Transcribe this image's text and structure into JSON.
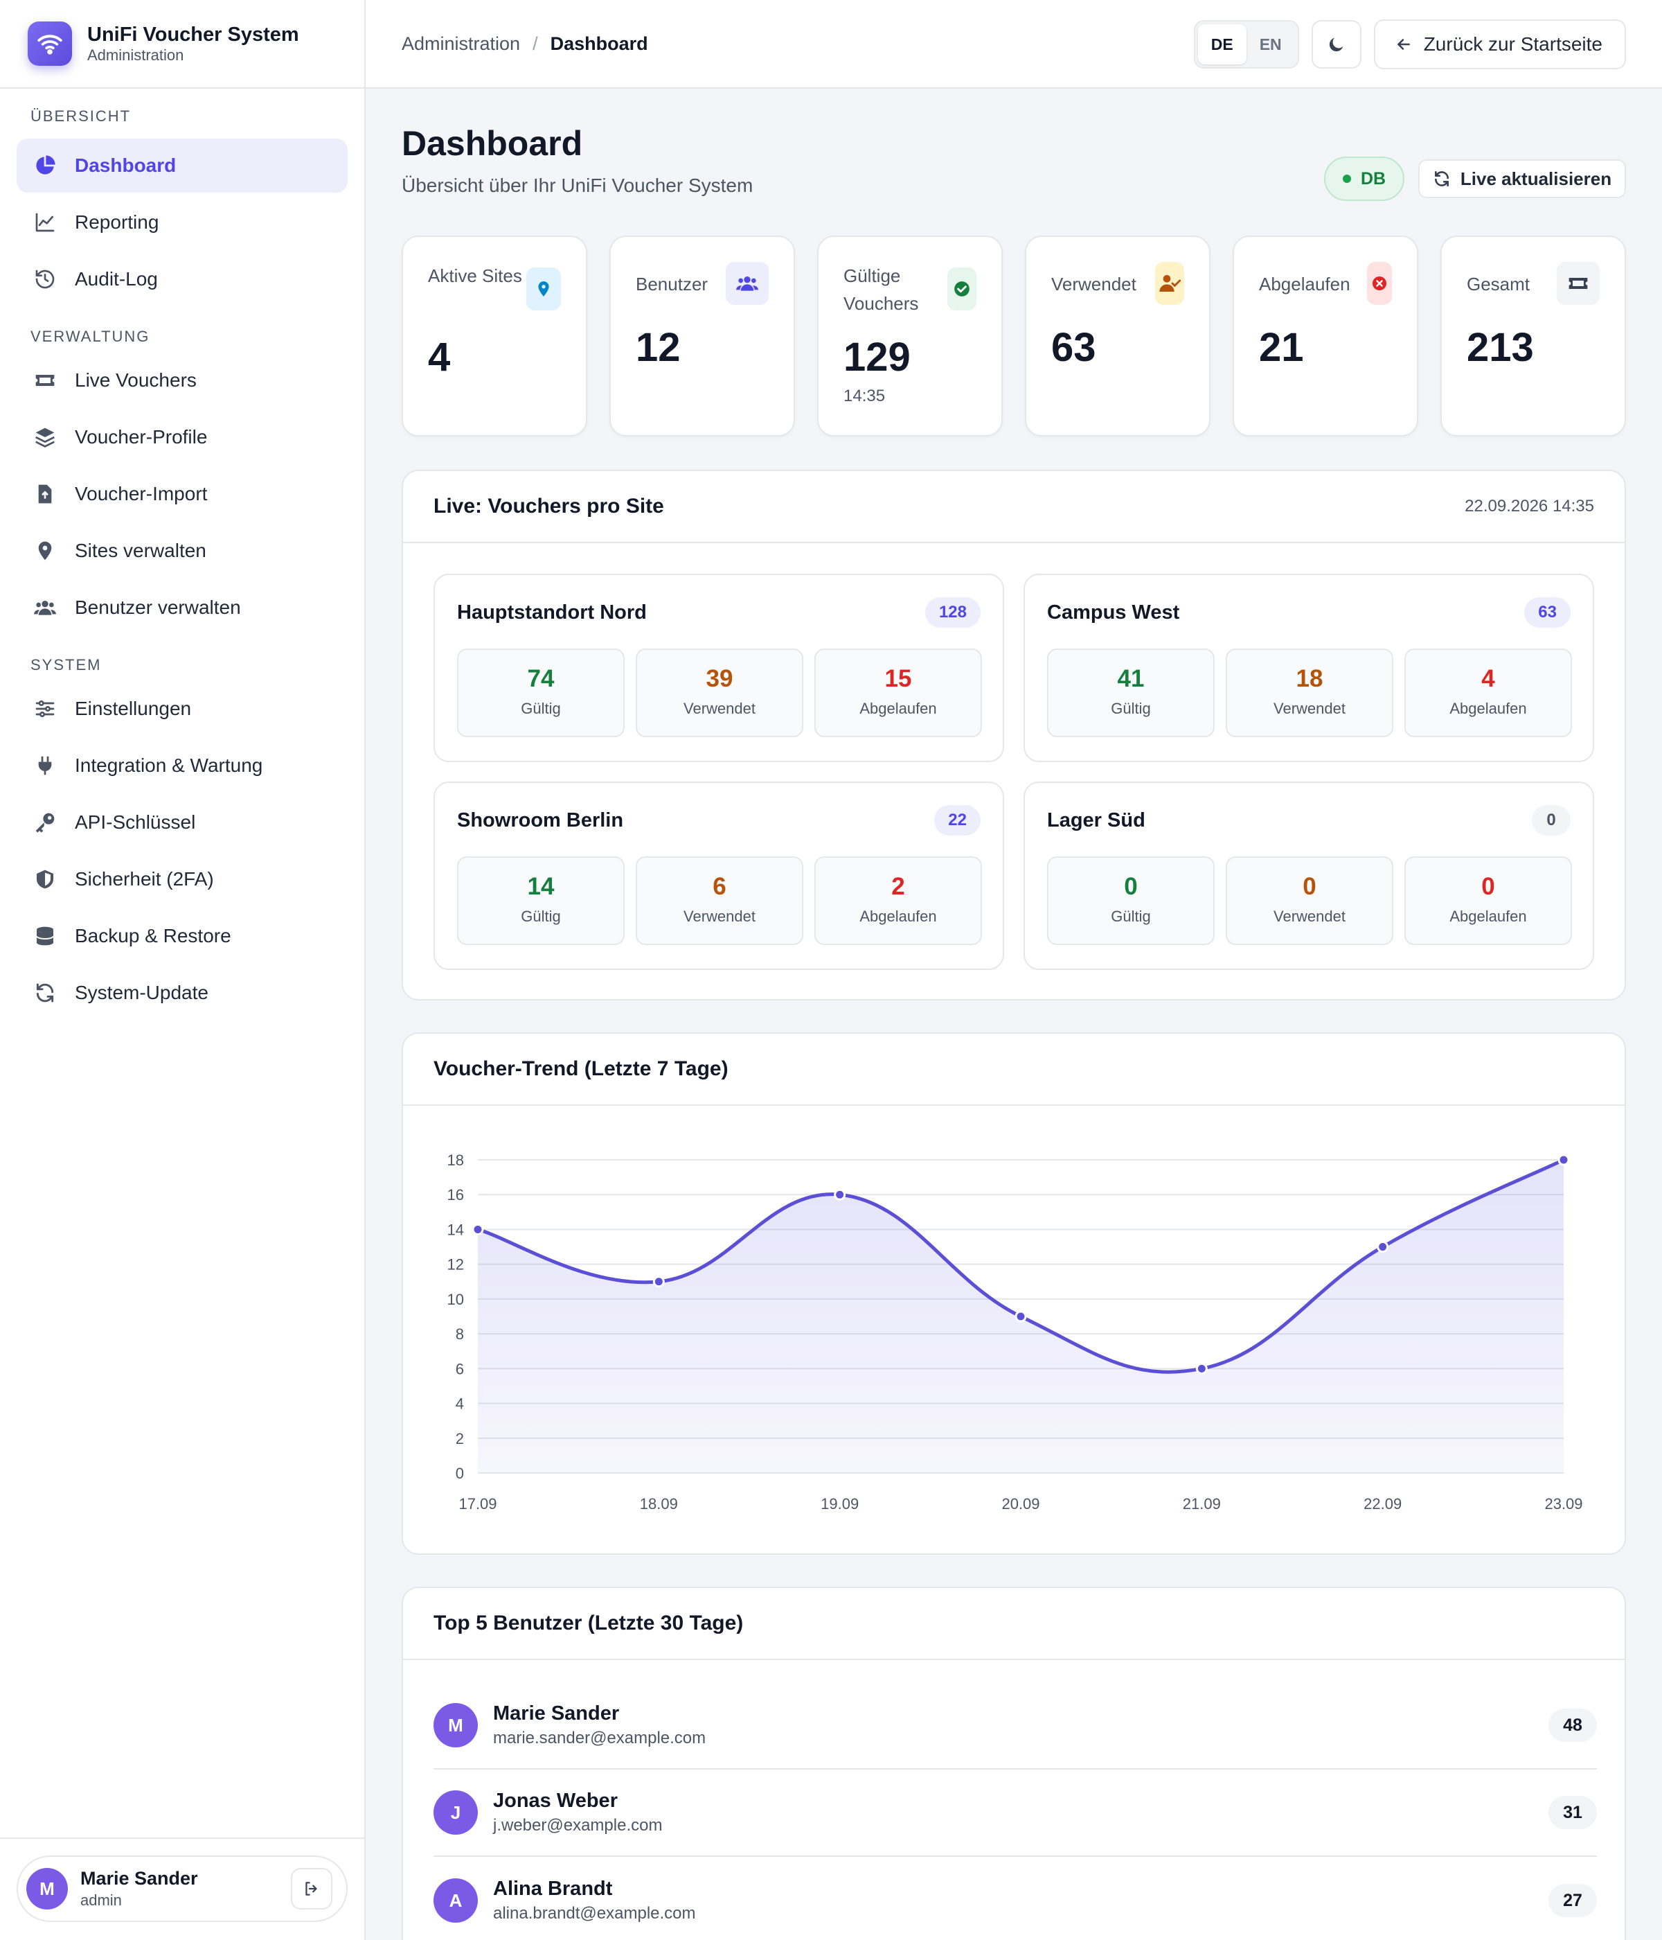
{
  "app": {
    "title": "UniFi Voucher System",
    "subtitle": "Administration"
  },
  "sidebar": {
    "sections": [
      {
        "label": "ÜBERSICHT",
        "items": [
          {
            "label": "Dashboard",
            "icon": "pie-chart-icon",
            "active": true
          },
          {
            "label": "Reporting",
            "icon": "line-chart-icon"
          },
          {
            "label": "Audit-Log",
            "icon": "history-icon"
          }
        ]
      },
      {
        "label": "VERWALTUNG",
        "items": [
          {
            "label": "Live Vouchers",
            "icon": "ticket-icon"
          },
          {
            "label": "Voucher-Profile",
            "icon": "layers-icon"
          },
          {
            "label": "Voucher-Import",
            "icon": "file-import-icon"
          },
          {
            "label": "Sites verwalten",
            "icon": "map-pin-icon"
          },
          {
            "label": "Benutzer verwalten",
            "icon": "users-icon"
          }
        ]
      },
      {
        "label": "SYSTEM",
        "items": [
          {
            "label": "Einstellungen",
            "icon": "sliders-icon"
          },
          {
            "label": "Integration & Wartung",
            "icon": "plug-icon"
          },
          {
            "label": "API-Schlüssel",
            "icon": "key-icon"
          },
          {
            "label": "Sicherheit (2FA)",
            "icon": "shield-icon"
          },
          {
            "label": "Backup & Restore",
            "icon": "database-icon"
          },
          {
            "label": "System-Update",
            "icon": "refresh-icon"
          }
        ]
      }
    ],
    "user": {
      "initial": "M",
      "name": "Marie Sander",
      "role": "admin"
    }
  },
  "topbar": {
    "breadcrumb": [
      "Administration",
      "Dashboard"
    ],
    "languages": [
      "DE",
      "EN"
    ],
    "active_language": "DE",
    "back_label": "Zurück zur Startseite"
  },
  "page": {
    "title": "Dashboard",
    "subtitle": "Übersicht über Ihr UniFi Voucher System",
    "db_badge": "DB",
    "refresh_label": "Live aktualisieren"
  },
  "stats": [
    {
      "label": "Aktive Sites",
      "value": "4",
      "icon": "map-pin-icon",
      "color": "#0284c7",
      "bg": "#e0f2fe"
    },
    {
      "label": "Benutzer",
      "value": "12",
      "icon": "users-icon",
      "color": "#4f46e5",
      "bg": "#eeedfc"
    },
    {
      "label": "Gültige Vouchers",
      "value": "129",
      "time": "14:35",
      "icon": "check-circle-icon",
      "color": "#15803d",
      "bg": "#e6f6ec"
    },
    {
      "label": "Verwendet",
      "value": "63",
      "icon": "user-check-icon",
      "color": "#b45309",
      "bg": "#fef3c7"
    },
    {
      "label": "Abgelaufen",
      "value": "21",
      "icon": "x-circle-icon",
      "color": "#dc2626",
      "bg": "#fee2e2"
    },
    {
      "label": "Gesamt",
      "value": "213",
      "icon": "ticket-icon",
      "color": "#374151",
      "bg": "#f3f4f6"
    }
  ],
  "live": {
    "title": "Live: Vouchers pro Site",
    "timestamp": "22.09.2026 14:35",
    "labels": {
      "valid": "Gültig",
      "used": "Verwendet",
      "expired": "Abgelaufen"
    },
    "sites": [
      {
        "name": "Hauptstandort Nord",
        "total": "128",
        "valid": "74",
        "used": "39",
        "expired": "15"
      },
      {
        "name": "Campus West",
        "total": "63",
        "valid": "41",
        "used": "18",
        "expired": "4"
      },
      {
        "name": "Showroom Berlin",
        "total": "22",
        "valid": "14",
        "used": "6",
        "expired": "2"
      },
      {
        "name": "Lager Süd",
        "total": "0",
        "valid": "0",
        "used": "0",
        "expired": "0"
      }
    ]
  },
  "trend": {
    "title": "Voucher-Trend (Letzte 7 Tage)"
  },
  "chart_data": {
    "type": "area",
    "categories": [
      "17.09",
      "18.09",
      "19.09",
      "20.09",
      "21.09",
      "22.09",
      "23.09"
    ],
    "values": [
      14,
      11,
      16,
      9,
      6,
      13,
      18
    ],
    "yticks": [
      0,
      2,
      4,
      6,
      8,
      10,
      12,
      14,
      16,
      18
    ],
    "ylim": [
      0,
      18
    ],
    "grid": true,
    "color": "#5b4fd6"
  },
  "top_users": {
    "title": "Top 5 Benutzer (Letzte 30 Tage)",
    "users": [
      {
        "initial": "M",
        "name": "Marie Sander",
        "email": "marie.sander@example.com",
        "count": "48"
      },
      {
        "initial": "J",
        "name": "Jonas Weber",
        "email": "j.weber@example.com",
        "count": "31"
      },
      {
        "initial": "A",
        "name": "Alina Brandt",
        "email": "alina.brandt@example.com",
        "count": "27"
      }
    ]
  }
}
